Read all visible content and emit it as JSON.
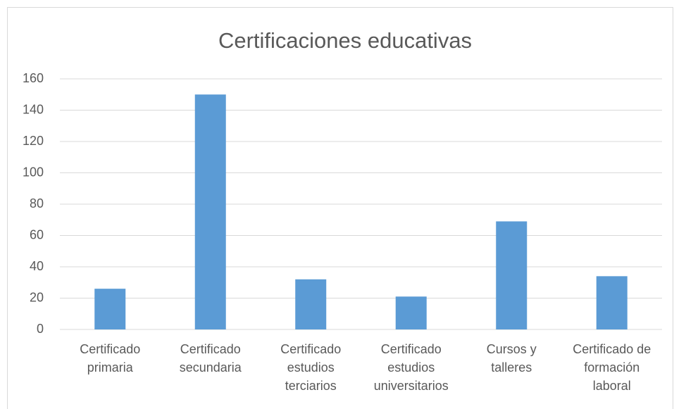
{
  "chart_data": {
    "type": "bar",
    "title": "Certificaciones educativas",
    "categories": [
      "Certificado primaria",
      "Certificado secundaria",
      "Certificado estudios terciarios",
      "Certificado estudios universitarios",
      "Cursos y talleres",
      "Certificado de formación laboral"
    ],
    "values": [
      26,
      150,
      32,
      21,
      69,
      34
    ],
    "color": "#5b9bd5",
    "ylim": [
      0,
      160
    ],
    "yticks": [
      0,
      20,
      40,
      60,
      80,
      100,
      120,
      140,
      160
    ],
    "grid": true
  }
}
